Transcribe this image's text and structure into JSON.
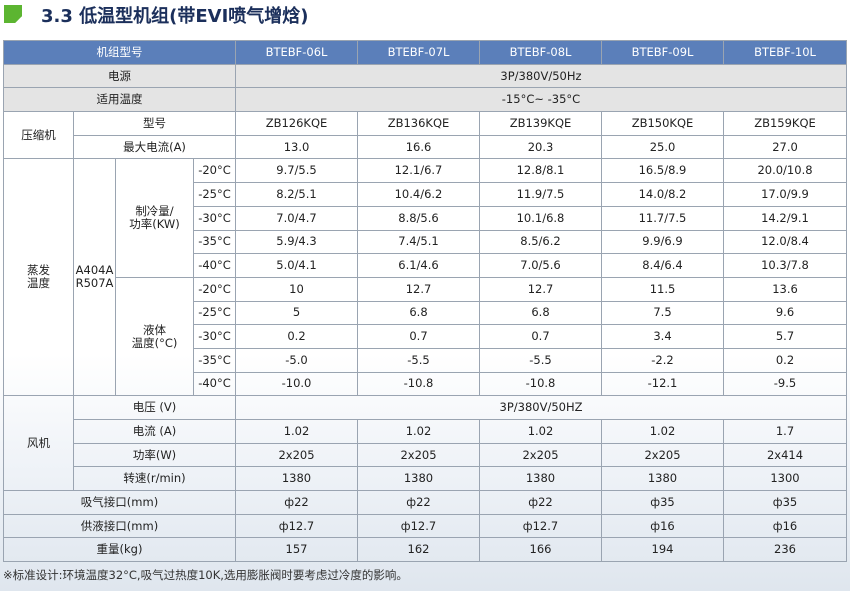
{
  "title": "3.3 低温型机组(带EVI喷气增焓)",
  "header": {
    "label": "机组型号",
    "models": [
      "BTEBF-06L",
      "BTEBF-07L",
      "BTEBF-08L",
      "BTEBF-09L",
      "BTEBF-10L"
    ]
  },
  "power": {
    "label": "电源",
    "value": "3P/380V/50Hz"
  },
  "temp_range": {
    "label": "适用温度",
    "value": "-15°C~ -35°C"
  },
  "compressor": {
    "label": "压缩机",
    "model_label": "型号",
    "models": [
      "ZB126KQE",
      "ZB136KQE",
      "ZB139KQE",
      "ZB150KQE",
      "ZB159KQE"
    ],
    "current_label": "最大电流(A)",
    "currents": [
      "13.0",
      "16.6",
      "20.3",
      "25.0",
      "27.0"
    ]
  },
  "evaporation": {
    "label_line1": "蒸发",
    "label_line2": "温度",
    "refrigerant_line1": "A404A",
    "refrigerant_line2": "R507A",
    "cooling_label_line1": "制冷量/",
    "cooling_label_line2": "功率(KW)",
    "liquid_label_line1": "液体",
    "liquid_label_line2": "温度(°C)",
    "cooling_rows": [
      {
        "temp": "-20°C",
        "values": [
          "9.7/5.5",
          "12.1/6.7",
          "12.8/8.1",
          "16.5/8.9",
          "20.0/10.8"
        ]
      },
      {
        "temp": "-25°C",
        "values": [
          "8.2/5.1",
          "10.4/6.2",
          "11.9/7.5",
          "14.0/8.2",
          "17.0/9.9"
        ]
      },
      {
        "temp": "-30°C",
        "values": [
          "7.0/4.7",
          "8.8/5.6",
          "10.1/6.8",
          "11.7/7.5",
          "14.2/9.1"
        ]
      },
      {
        "temp": "-35°C",
        "values": [
          "5.9/4.3",
          "7.4/5.1",
          "8.5/6.2",
          "9.9/6.9",
          "12.0/8.4"
        ]
      },
      {
        "temp": "-40°C",
        "values": [
          "5.0/4.1",
          "6.1/4.6",
          "7.0/5.6",
          "8.4/6.4",
          "10.3/7.8"
        ]
      }
    ],
    "liquid_rows": [
      {
        "temp": "-20°C",
        "values": [
          "10",
          "12.7",
          "12.7",
          "11.5",
          "13.6"
        ]
      },
      {
        "temp": "-25°C",
        "values": [
          "5",
          "6.8",
          "6.8",
          "7.5",
          "9.6"
        ]
      },
      {
        "temp": "-30°C",
        "values": [
          "0.2",
          "0.7",
          "0.7",
          "3.4",
          "5.7"
        ]
      },
      {
        "temp": "-35°C",
        "values": [
          "-5.0",
          "-5.5",
          "-5.5",
          "-2.2",
          "0.2"
        ]
      },
      {
        "temp": "-40°C",
        "values": [
          "-10.0",
          "-10.8",
          "-10.8",
          "-12.1",
          "-9.5"
        ]
      }
    ]
  },
  "fan": {
    "label": "风机",
    "voltage_label": "电压 (V)",
    "voltage_value": "3P/380V/50HZ",
    "current_label": "电流 (A)",
    "currents": [
      "1.02",
      "1.02",
      "1.02",
      "1.02",
      "1.7"
    ],
    "power_label": "功率(W)",
    "powers": [
      "2x205",
      "2x205",
      "2x205",
      "2x205",
      "2x414"
    ],
    "speed_label": "转速(r/min)",
    "speeds": [
      "1380",
      "1380",
      "1380",
      "1380",
      "1300"
    ]
  },
  "suction": {
    "label": "吸气接口(mm)",
    "values": [
      "ф22",
      "ф22",
      "ф22",
      "ф35",
      "ф35"
    ]
  },
  "liquid_port": {
    "label": "供液接口(mm)",
    "values": [
      "ф12.7",
      "ф12.7",
      "ф12.7",
      "ф16",
      "ф16"
    ]
  },
  "weight": {
    "label": "重量(kg)",
    "values": [
      "157",
      "162",
      "166",
      "194",
      "236"
    ]
  },
  "footnote": "※标准设计:环境温度32°C,吸气过热度10K,选用膨胀阀时要考虑过冷度的影响。",
  "colors": {
    "header_bg": "#5b7fba",
    "label_bg": "#e4e4e4",
    "accent_green": "#5cb531",
    "title": "#1b2f5b"
  }
}
